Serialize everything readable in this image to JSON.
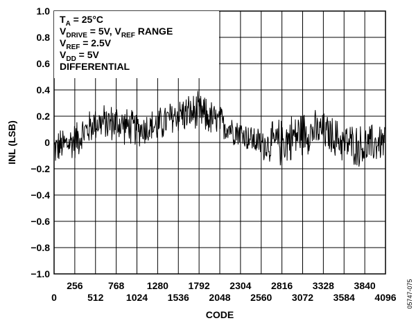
{
  "chart_data": {
    "type": "line",
    "xlabel": "CODE",
    "ylabel": "INL (LSB)",
    "xlim": [
      0,
      4096
    ],
    "ylim": [
      -1.0,
      1.0
    ],
    "grid": true,
    "x_ticks_lower": [
      "0",
      "512",
      "1024",
      "1536",
      "2048",
      "2560",
      "3072",
      "3584",
      "4096"
    ],
    "x_ticks_upper": [
      "256",
      "768",
      "1280",
      "1792",
      "2304",
      "2816",
      "3328",
      "3840"
    ],
    "y_ticks": [
      "1.0",
      "0.8",
      "0.6",
      "0.4",
      "0.2",
      "0",
      "−0.2",
      "−0.4",
      "−0.6",
      "−0.8",
      "−1.0"
    ],
    "legend": {
      "placement": "top-left",
      "lines": [
        [
          {
            "t": "T"
          },
          {
            "t": "A",
            "sub": true
          },
          {
            "t": " = 25°C"
          }
        ],
        [
          {
            "t": "V"
          },
          {
            "t": "DRIVE",
            "sub": true
          },
          {
            "t": " = 5V, V"
          },
          {
            "t": "REF",
            "sub": true
          },
          {
            "t": " RANGE"
          }
        ],
        [
          {
            "t": "V"
          },
          {
            "t": "REF",
            "sub": true
          },
          {
            "t": " = 2.5V"
          }
        ],
        [
          {
            "t": "V"
          },
          {
            "t": "DD",
            "sub": true
          },
          {
            "t": " = 5V"
          }
        ],
        [
          {
            "t": "DIFFERENTIAL"
          }
        ]
      ]
    },
    "series": [
      {
        "style": "noisy-trace",
        "envelope": {
          "x": [
            0,
            256,
            512,
            768,
            1024,
            1280,
            1536,
            1792,
            2048,
            2304,
            2560,
            2816,
            3072,
            3328,
            3584,
            3840,
            4096
          ],
          "y_min": [
            -0.2,
            -0.15,
            0.0,
            -0.02,
            -0.05,
            -0.03,
            0.05,
            0.05,
            0.0,
            -0.05,
            -0.15,
            -0.22,
            -0.12,
            -0.08,
            -0.18,
            -0.22,
            -0.15
          ],
          "y_max": [
            0.1,
            0.18,
            0.3,
            0.32,
            0.25,
            0.28,
            0.38,
            0.4,
            0.3,
            0.2,
            0.12,
            0.22,
            0.28,
            0.25,
            0.18,
            0.15,
            0.18
          ]
        }
      }
    ]
  },
  "figure_id": "05747-075"
}
